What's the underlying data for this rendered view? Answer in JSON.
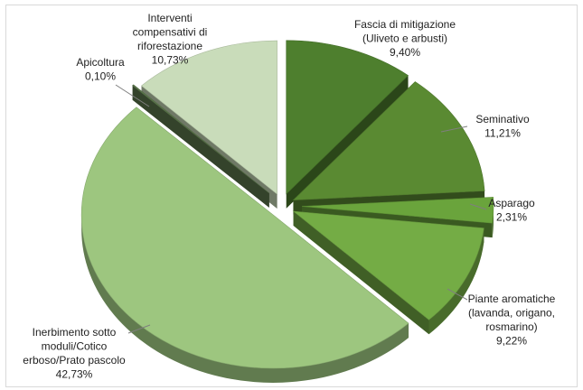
{
  "chart_data": {
    "type": "pie",
    "title": "",
    "style": "3d-exploded",
    "unit": "%",
    "slices": [
      {
        "label_lines": [
          "Fascia di mitigazione",
          "(Uliveto e arbusti)",
          "9,40%"
        ],
        "value": 9.4,
        "color": "#4e7f2e"
      },
      {
        "label_lines": [
          "Seminativo",
          "11,21%"
        ],
        "value": 11.21,
        "color": "#5a8a32"
      },
      {
        "label_lines": [
          "Asparago",
          "2,31%"
        ],
        "value": 2.31,
        "color": "#6aa43c"
      },
      {
        "label_lines": [
          "Piante aromatiche",
          "(lavanda, origano,",
          "rosmarino)",
          "9,22%"
        ],
        "value": 9.22,
        "color": "#74ac45"
      },
      {
        "label_lines": [
          "Inerbimento sotto",
          "moduli/Cotico",
          "erboso/Prato pascolo",
          "42,73%"
        ],
        "value": 42.73,
        "color": "#9dc67f"
      },
      {
        "label_lines": [
          "Apicoltura",
          "0,10%"
        ],
        "value": 0.1,
        "color": "#5e7a4e"
      },
      {
        "label_lines": [
          "Interventi",
          "compensativi di",
          "riforestazione",
          "10,73%"
        ],
        "value": 10.73,
        "color": "#c9dcba"
      }
    ]
  }
}
